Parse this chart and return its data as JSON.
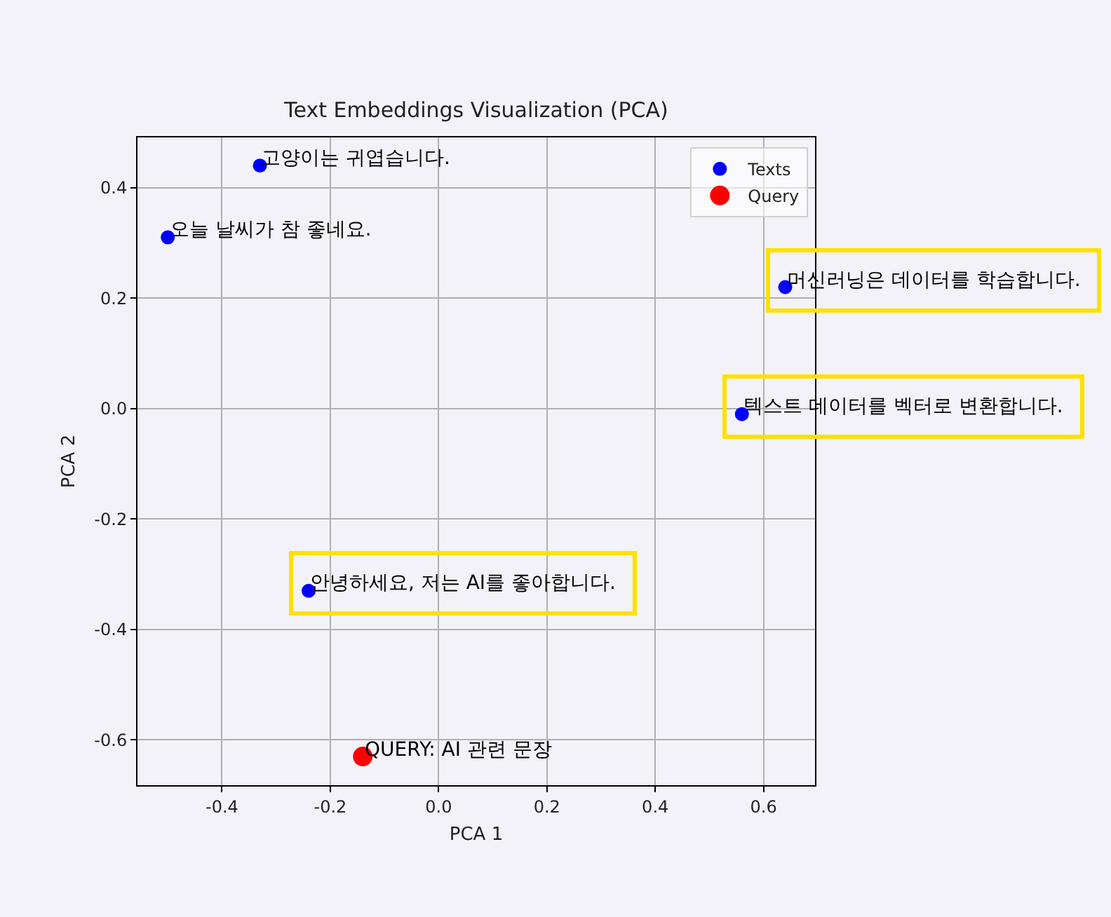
{
  "chart_data": {
    "type": "scatter",
    "title": "Text Embeddings Visualization (PCA)",
    "xlabel": "PCA 1",
    "ylabel": "PCA 2",
    "series": [
      {
        "name": "Texts",
        "color": "#0000ff",
        "x": [
          -0.5,
          -0.33,
          0.64,
          0.56,
          -0.24
        ],
        "values": [
          0.31,
          0.44,
          0.22,
          -0.01,
          -0.33
        ]
      },
      {
        "name": "Query",
        "color": "#ff0000",
        "x": [
          -0.14
        ],
        "values": [
          -0.63
        ]
      }
    ],
    "annotations": [
      {
        "text": "오늘 날씨가 참 좋네요.",
        "x": -0.5,
        "y": 0.31
      },
      {
        "text": "고양이는 귀엽습니다.",
        "x": -0.33,
        "y": 0.44
      },
      {
        "text": "머신러닝은 데이터를 학습합니다.",
        "x": 0.64,
        "y": 0.22
      },
      {
        "text": "텍스트 데이터를 벡터로 변환합니다.",
        "x": 0.56,
        "y": -0.01
      },
      {
        "text": "안녕하세요, 저는 AI를 좋아합니다.",
        "x": -0.24,
        "y": -0.33
      },
      {
        "text": "QUERY: AI 관련 문장",
        "x": -0.14,
        "y": -0.63
      }
    ],
    "xlim": [
      -0.556,
      0.695
    ],
    "ylim": [
      -0.682,
      0.491
    ],
    "xticks": [
      -0.4,
      -0.2,
      {
        "value": 0,
        "label": "0.0"
      },
      0.2,
      0.4,
      0.6
    ],
    "yticks": [
      -0.6,
      -0.4,
      -0.2,
      {
        "value": 0,
        "label": "0.0"
      },
      0.2,
      0.4
    ],
    "grid": true,
    "legend": "top right",
    "marker": "circle"
  }
}
